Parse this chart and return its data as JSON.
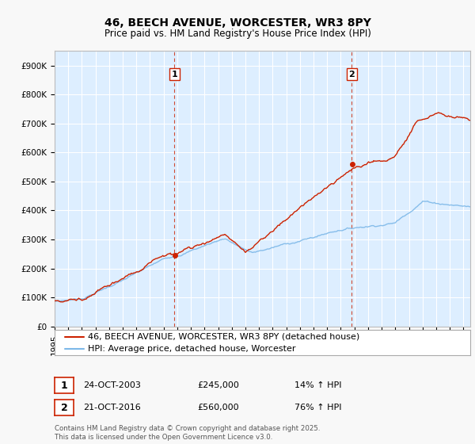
{
  "title_line1": "46, BEECH AVENUE, WORCESTER, WR3 8PY",
  "title_line2": "Price paid vs. HM Land Registry's House Price Index (HPI)",
  "ytick_labels": [
    "£0",
    "£100K",
    "£200K",
    "£300K",
    "£400K",
    "£500K",
    "£600K",
    "£700K",
    "£800K",
    "£900K"
  ],
  "yticks": [
    0,
    100000,
    200000,
    300000,
    400000,
    500000,
    600000,
    700000,
    800000,
    900000
  ],
  "ylim": [
    0,
    950000
  ],
  "xlim_start": 1995.0,
  "xlim_end": 2025.5,
  "hpi_color": "#7db8e8",
  "price_color": "#cc2200",
  "chart_bg_color": "#ddeeff",
  "fig_bg_color": "#f8f8f8",
  "legend_label_price": "46, BEECH AVENUE, WORCESTER, WR3 8PY (detached house)",
  "legend_label_hpi": "HPI: Average price, detached house, Worcester",
  "annotation1_label": "1",
  "annotation1_date": "24-OCT-2003",
  "annotation1_price": "£245,000",
  "annotation1_hpi": "14% ↑ HPI",
  "annotation1_year": 2003.8,
  "annotation2_label": "2",
  "annotation2_date": "21-OCT-2016",
  "annotation2_price": "£560,000",
  "annotation2_hpi": "76% ↑ HPI",
  "annotation2_year": 2016.8,
  "footer_text": "Contains HM Land Registry data © Crown copyright and database right 2025.\nThis data is licensed under the Open Government Licence v3.0.",
  "title_fontsize": 10,
  "subtitle_fontsize": 8.5,
  "tick_fontsize": 7.5,
  "legend_fontsize": 8,
  "annot_fontsize": 8
}
